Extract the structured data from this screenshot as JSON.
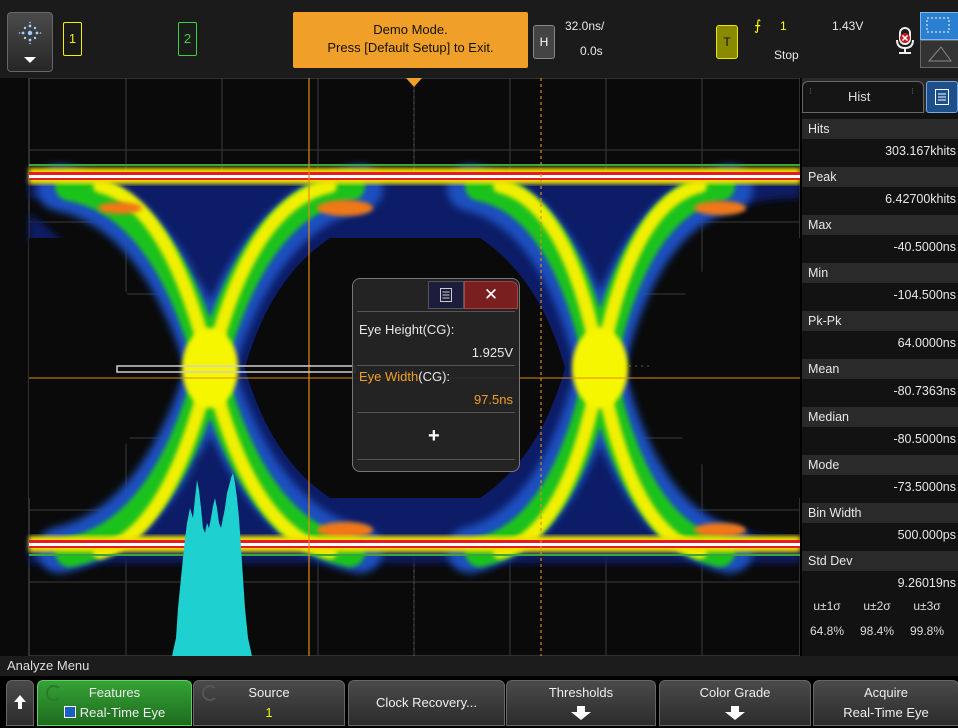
{
  "topbar": {
    "channel1": "1",
    "channel2": "2",
    "demo_line1": "Demo Mode.",
    "demo_line2": "Press [Default Setup] to Exit.",
    "horizontal_button": "H",
    "time_per_div": "32.0ns/",
    "time_position": "0.0s",
    "trigger_button": "T",
    "trigger_symbol": "⨍",
    "trigger_channel": "1",
    "trigger_level": "1.43V",
    "run_state": "Stop"
  },
  "panel": {
    "tab_label": "Hist",
    "stats": [
      {
        "label": "Hits",
        "value": "303.167khits"
      },
      {
        "label": "Peak",
        "value": "6.42700khits"
      },
      {
        "label": "Max",
        "value": "-40.5000ns"
      },
      {
        "label": "Min",
        "value": "-104.500ns"
      },
      {
        "label": "Pk-Pk",
        "value": "64.0000ns"
      },
      {
        "label": "Mean",
        "value": "-80.7363ns"
      },
      {
        "label": "Median",
        "value": "-80.5000ns"
      },
      {
        "label": "Mode",
        "value": "-73.5000ns"
      },
      {
        "label": "Bin Width",
        "value": "500.000ps"
      },
      {
        "label": "Std Dev",
        "value": "9.26019ns"
      }
    ],
    "sigma_headers": [
      "u±1σ",
      "u±2σ",
      "u±3σ"
    ],
    "sigma_values": [
      "64.8%",
      "98.4%",
      "99.8%"
    ]
  },
  "popup": {
    "eye_height_label": "Eye Height(CG):",
    "eye_height_value": "1.925V",
    "eye_width_label": "Eye Width",
    "eye_width_suffix": "(CG):",
    "eye_width_value": "97.5ns",
    "add_symbol": "+"
  },
  "analyze_menu": {
    "title": "Analyze Menu",
    "features_label": "Features",
    "features_value": "Real-Time Eye",
    "source_label": "Source",
    "source_value": "1",
    "clock_recovery_label": "Clock Recovery...",
    "thresholds_label": "Thresholds",
    "color_grade_label": "Color Grade",
    "acquire_label": "Acquire",
    "acquire_value": "Real-Time Eye"
  },
  "colors": {
    "channel1": "#f2f200",
    "channel2": "#3fcf3f",
    "demo_banner": "#f0a029",
    "marker": "#e08a10",
    "histogram": "#1fd0d0",
    "accent_blue": "#2b7fd0"
  }
}
